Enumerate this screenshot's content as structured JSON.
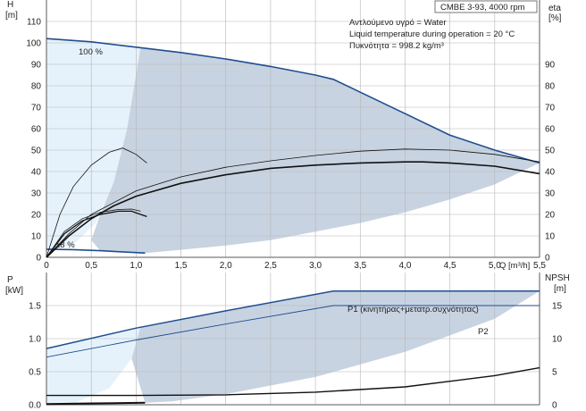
{
  "chart_data": {
    "type": "line",
    "header": "CMBE 3-93, 4000 rpm",
    "info_lines": [
      "Αντλούμενο υγρό = Water",
      "Liquid temperature during operation = 20 °C",
      "Πυκνότητα = 998.2 kg/m³"
    ],
    "top_panel": {
      "ylabel_left": [
        "H",
        "[m]"
      ],
      "ylabel_right": [
        "eta",
        "[%]"
      ],
      "xlabel": "Q [m³/h]",
      "xlim": [
        0,
        5.5
      ],
      "ylim": [
        0,
        120
      ],
      "x_ticks": [
        0,
        0.5,
        1.0,
        1.5,
        2.0,
        2.5,
        3.0,
        3.5,
        4.0,
        4.5,
        5.0,
        5.5
      ],
      "x_tick_labels": [
        "0",
        "0,5",
        "1,0",
        "1,5",
        "2,0",
        "2,5",
        "3,0",
        "3,5",
        "4,0",
        "4,5",
        "5,0",
        "5,5"
      ],
      "y_ticks_left": [
        0,
        10,
        20,
        30,
        40,
        50,
        60,
        70,
        80,
        90,
        100,
        110
      ],
      "y_ticks_right": [
        0,
        10,
        20,
        30,
        40,
        50,
        60,
        70,
        80,
        90
      ],
      "labels": {
        "max_speed": "100 %",
        "min_speed": "18 %"
      },
      "series": [
        {
          "role": "H_max",
          "points": [
            [
              0,
              102
            ],
            [
              0.5,
              100.5
            ],
            [
              1.0,
              98
            ],
            [
              1.5,
              95.5
            ],
            [
              2.0,
              92.5
            ],
            [
              2.5,
              89
            ],
            [
              3.0,
              85
            ],
            [
              3.2,
              83
            ],
            [
              3.5,
              77
            ],
            [
              4.0,
              67
            ],
            [
              4.5,
              57
            ],
            [
              5.0,
              50
            ],
            [
              5.5,
              44
            ]
          ]
        },
        {
          "role": "H_min",
          "points": [
            [
              0,
              3.8
            ],
            [
              0.3,
              3.6
            ],
            [
              0.6,
              3.1
            ],
            [
              0.9,
              2.4
            ],
            [
              1.1,
              2.0
            ]
          ]
        },
        {
          "role": "eta_max",
          "points": [
            [
              0,
              0
            ],
            [
              0.25,
              10
            ],
            [
              0.5,
              18
            ],
            [
              0.75,
              24
            ],
            [
              1.0,
              28.5
            ],
            [
              1.5,
              34.5
            ],
            [
              2.0,
              38.5
            ],
            [
              2.5,
              41.5
            ],
            [
              3.0,
              43
            ],
            [
              3.5,
              44
            ],
            [
              4.0,
              44.5
            ],
            [
              4.2,
              44.5
            ],
            [
              4.5,
              44
            ],
            [
              5.0,
              42.5
            ],
            [
              5.5,
              39
            ]
          ]
        },
        {
          "role": "eta_upper",
          "points": [
            [
              0,
              0
            ],
            [
              0.25,
              11
            ],
            [
              0.5,
              20
            ],
            [
              1.0,
              31
            ],
            [
              1.5,
              37.5
            ],
            [
              2.0,
              42
            ],
            [
              2.5,
              45
            ],
            [
              3.0,
              47.5
            ],
            [
              3.5,
              49.5
            ],
            [
              4.0,
              50.5
            ],
            [
              4.5,
              50
            ],
            [
              5.0,
              48
            ],
            [
              5.5,
              44.5
            ]
          ]
        },
        {
          "role": "eta_mid",
          "points": [
            [
              0,
              0
            ],
            [
              0.2,
              11
            ],
            [
              0.4,
              17
            ],
            [
              0.6,
              20
            ],
            [
              0.8,
              21.5
            ],
            [
              0.95,
              21.5
            ],
            [
              1.05,
              20
            ],
            [
              1.12,
              19
            ]
          ]
        },
        {
          "role": "eta_mid_thin",
          "points": [
            [
              0,
              0
            ],
            [
              0.2,
              12
            ],
            [
              0.4,
              18
            ],
            [
              0.6,
              21
            ],
            [
              0.8,
              22.3
            ],
            [
              0.95,
              22.5
            ],
            [
              1.05,
              21.5
            ]
          ]
        },
        {
          "role": "eta_small",
          "points": [
            [
              0,
              0
            ],
            [
              0.15,
              20
            ],
            [
              0.3,
              33
            ],
            [
              0.5,
              43
            ],
            [
              0.7,
              49
            ],
            [
              0.85,
              51
            ],
            [
              1.0,
              48
            ],
            [
              1.12,
              44
            ]
          ]
        }
      ]
    },
    "bottom_panel": {
      "ylabel_left": [
        "P",
        "[kW]"
      ],
      "ylabel_right": [
        "NPSH",
        "[m]"
      ],
      "xlim": [
        0,
        5.5
      ],
      "ylim": [
        0,
        2.0
      ],
      "y_ticks_left": [
        0.0,
        0.5,
        1.0,
        1.5
      ],
      "y_tick_labels_left": [
        "0.0",
        "0.5",
        "1.0",
        "1.5"
      ],
      "y_ticks_right": [
        0,
        5,
        10,
        15
      ],
      "series": [
        {
          "role": "P1",
          "name": "P1 (κινητήρας+μετατρ.συχνότητας)",
          "points": [
            [
              0,
              0.85
            ],
            [
              1.0,
              1.16
            ],
            [
              2.0,
              1.42
            ],
            [
              3.2,
              1.72
            ],
            [
              5.5,
              1.72
            ]
          ]
        },
        {
          "role": "P2",
          "name": "P2",
          "points": [
            [
              0,
              0.72
            ],
            [
              1.0,
              0.98
            ],
            [
              2.0,
              1.22
            ],
            [
              3.2,
              1.5
            ],
            [
              5.5,
              1.5
            ]
          ]
        },
        {
          "role": "NPSH",
          "points": [
            [
              0,
              0.14
            ],
            [
              1.0,
              0.14
            ],
            [
              2.0,
              0.15
            ],
            [
              3.0,
              0.19
            ],
            [
              4.0,
              0.27
            ],
            [
              5.0,
              0.44
            ],
            [
              5.5,
              0.56
            ]
          ]
        },
        {
          "role": "P_min",
          "points": [
            [
              0,
              0.01
            ],
            [
              0.5,
              0.02
            ],
            [
              1.1,
              0.03
            ]
          ]
        }
      ]
    },
    "colors": {
      "region_fill": "#c8d3e1",
      "light_fill": "#e6f2fb",
      "curve_blue": "#1f4e8f",
      "curve_black": "#111111",
      "grid": "#b5b5b5",
      "axis": "#5a5a5a"
    }
  }
}
